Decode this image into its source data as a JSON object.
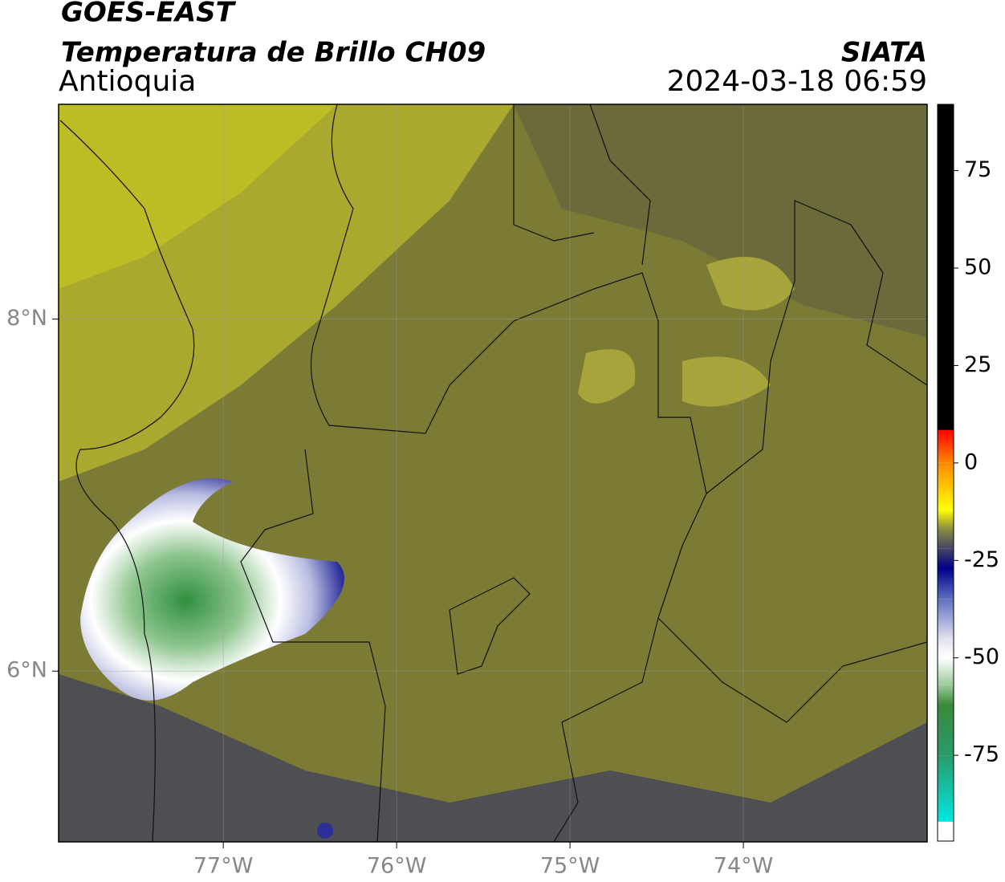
{
  "chart_data": {
    "type": "map",
    "title": "GOES-EAST",
    "subtitle": "Temperatura de Brillo CH09",
    "region": "Antioquia",
    "source": "SIATA",
    "timestamp": "2024-03-18 06:59",
    "xlim": [
      -77.95,
      -72.94
    ],
    "ylim": [
      5.03,
      9.22
    ],
    "xticks": [
      {
        "value": -77,
        "label": "77°W"
      },
      {
        "value": -76,
        "label": "76°W"
      },
      {
        "value": -75,
        "label": "75°W"
      },
      {
        "value": -74,
        "label": "74°W"
      }
    ],
    "yticks": [
      {
        "value": 6,
        "label": "6°N"
      },
      {
        "value": 8,
        "label": "8°N"
      }
    ],
    "grid": true,
    "colorbar": {
      "lim": [
        -97,
        92
      ],
      "ticks": [
        -75,
        -50,
        -25,
        0,
        25,
        50,
        75
      ],
      "stops": [
        {
          "value": 92,
          "color": "#000000"
        },
        {
          "value": 8.5,
          "color": "#000000"
        },
        {
          "value": 8.4,
          "color": "#ff0000"
        },
        {
          "value": 0,
          "color": "#ff8800"
        },
        {
          "value": -12,
          "color": "#ffff00"
        },
        {
          "value": -17,
          "color": "#8a8a40"
        },
        {
          "value": -22,
          "color": "#444466"
        },
        {
          "value": -27,
          "color": "#000088"
        },
        {
          "value": -35,
          "color": "#6070c0"
        },
        {
          "value": -45,
          "color": "#e0e0f0"
        },
        {
          "value": -50,
          "color": "#ffffff"
        },
        {
          "value": -57,
          "color": "#9bc99b"
        },
        {
          "value": -62,
          "color": "#3a8a3a"
        },
        {
          "value": -75,
          "color": "#2a9a6a"
        },
        {
          "value": -92,
          "color": "#00e8e0"
        },
        {
          "value": -92.1,
          "color": "#ffffff"
        },
        {
          "value": -97,
          "color": "#ffffff"
        }
      ]
    }
  }
}
